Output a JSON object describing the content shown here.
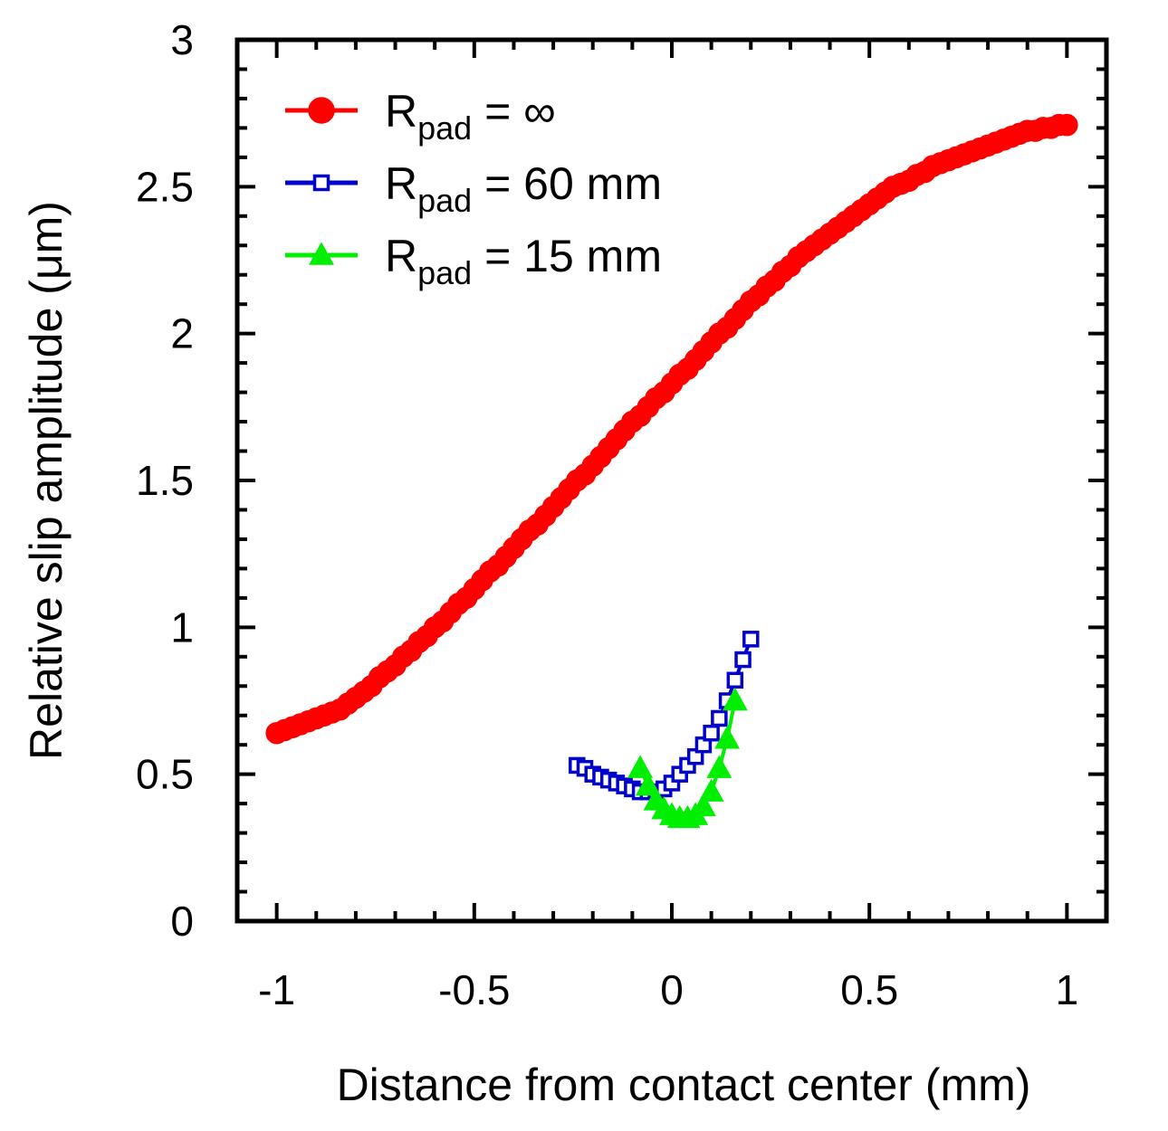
{
  "chart_data": {
    "type": "line",
    "title": "",
    "xlabel": "Distance from contact center (mm)",
    "ylabel": "Relative slip amplitude (μm)",
    "xlim": [
      -1.1,
      1.1
    ],
    "ylim": [
      0,
      3
    ],
    "xticks": [
      -1,
      -0.5,
      0,
      0.5,
      1
    ],
    "xtick_labels": [
      "-1",
      "-0.5",
      "0",
      "0.5",
      "1"
    ],
    "yticks": [
      0,
      0.5,
      1,
      1.5,
      2,
      2.5,
      3
    ],
    "ytick_labels": [
      "0",
      "0.5",
      "1",
      "1.5",
      "2",
      "2.5",
      "3"
    ],
    "grid": false,
    "legend_position": "top-left",
    "series": [
      {
        "name": "R_pad = ∞",
        "legend_base": "R",
        "legend_sub": "pad",
        "legend_value": " = ∞",
        "color": "#ff0000",
        "marker": "circle",
        "filled": true,
        "x": [
          -1.0,
          -0.98,
          -0.96,
          -0.94,
          -0.92,
          -0.9,
          -0.88,
          -0.86,
          -0.84,
          -0.82,
          -0.8,
          -0.78,
          -0.76,
          -0.74,
          -0.72,
          -0.7,
          -0.68,
          -0.66,
          -0.64,
          -0.62,
          -0.6,
          -0.58,
          -0.56,
          -0.54,
          -0.52,
          -0.5,
          -0.48,
          -0.46,
          -0.44,
          -0.42,
          -0.4,
          -0.38,
          -0.36,
          -0.34,
          -0.32,
          -0.3,
          -0.28,
          -0.26,
          -0.24,
          -0.22,
          -0.2,
          -0.18,
          -0.16,
          -0.14,
          -0.12,
          -0.1,
          -0.08,
          -0.06,
          -0.04,
          -0.02,
          0.0,
          0.02,
          0.04,
          0.06,
          0.08,
          0.1,
          0.12,
          0.14,
          0.16,
          0.18,
          0.2,
          0.22,
          0.24,
          0.26,
          0.28,
          0.3,
          0.32,
          0.34,
          0.36,
          0.38,
          0.4,
          0.42,
          0.44,
          0.46,
          0.48,
          0.5,
          0.52,
          0.54,
          0.56,
          0.58,
          0.6,
          0.62,
          0.64,
          0.66,
          0.68,
          0.7,
          0.72,
          0.74,
          0.76,
          0.78,
          0.8,
          0.82,
          0.84,
          0.86,
          0.88,
          0.9,
          0.92,
          0.94,
          0.96,
          0.98,
          1.0
        ],
        "y": [
          0.64,
          0.65,
          0.66,
          0.67,
          0.68,
          0.69,
          0.7,
          0.71,
          0.72,
          0.74,
          0.76,
          0.78,
          0.8,
          0.83,
          0.85,
          0.87,
          0.9,
          0.92,
          0.95,
          0.97,
          1.0,
          1.02,
          1.05,
          1.08,
          1.1,
          1.13,
          1.16,
          1.19,
          1.21,
          1.24,
          1.27,
          1.3,
          1.33,
          1.35,
          1.38,
          1.41,
          1.44,
          1.47,
          1.5,
          1.52,
          1.55,
          1.58,
          1.61,
          1.64,
          1.67,
          1.7,
          1.72,
          1.75,
          1.78,
          1.8,
          1.83,
          1.86,
          1.88,
          1.91,
          1.94,
          1.97,
          2.0,
          2.02,
          2.05,
          2.08,
          2.11,
          2.13,
          2.16,
          2.18,
          2.21,
          2.23,
          2.26,
          2.28,
          2.3,
          2.32,
          2.34,
          2.36,
          2.38,
          2.4,
          2.42,
          2.44,
          2.46,
          2.48,
          2.5,
          2.51,
          2.52,
          2.54,
          2.55,
          2.57,
          2.58,
          2.59,
          2.6,
          2.61,
          2.62,
          2.63,
          2.64,
          2.65,
          2.66,
          2.67,
          2.68,
          2.69,
          2.69,
          2.7,
          2.7,
          2.71,
          2.71
        ]
      },
      {
        "name": "R_pad = 60 mm",
        "legend_base": "R",
        "legend_sub": "pad",
        "legend_value": " = 60 mm",
        "color": "#0000cc",
        "marker": "square",
        "filled": false,
        "x": [
          -0.24,
          -0.22,
          -0.2,
          -0.18,
          -0.16,
          -0.14,
          -0.12,
          -0.1,
          -0.08,
          -0.06,
          -0.04,
          -0.02,
          0.0,
          0.02,
          0.04,
          0.06,
          0.08,
          0.1,
          0.12,
          0.14,
          0.16,
          0.18,
          0.2
        ],
        "y": [
          0.53,
          0.52,
          0.5,
          0.49,
          0.48,
          0.47,
          0.46,
          0.45,
          0.44,
          0.44,
          0.44,
          0.45,
          0.47,
          0.5,
          0.53,
          0.56,
          0.6,
          0.64,
          0.69,
          0.75,
          0.82,
          0.89,
          0.96
        ]
      },
      {
        "name": "R_pad = 15 mm",
        "legend_base": "R",
        "legend_sub": "pad",
        "legend_value": " = 15 mm",
        "color": "#00ee00",
        "marker": "triangle",
        "filled": true,
        "x": [
          -0.08,
          -0.06,
          -0.04,
          -0.02,
          0.0,
          0.02,
          0.04,
          0.06,
          0.08,
          0.1,
          0.12,
          0.14,
          0.16
        ],
        "y": [
          0.52,
          0.46,
          0.41,
          0.38,
          0.36,
          0.35,
          0.35,
          0.36,
          0.39,
          0.44,
          0.52,
          0.62,
          0.75
        ]
      }
    ]
  }
}
